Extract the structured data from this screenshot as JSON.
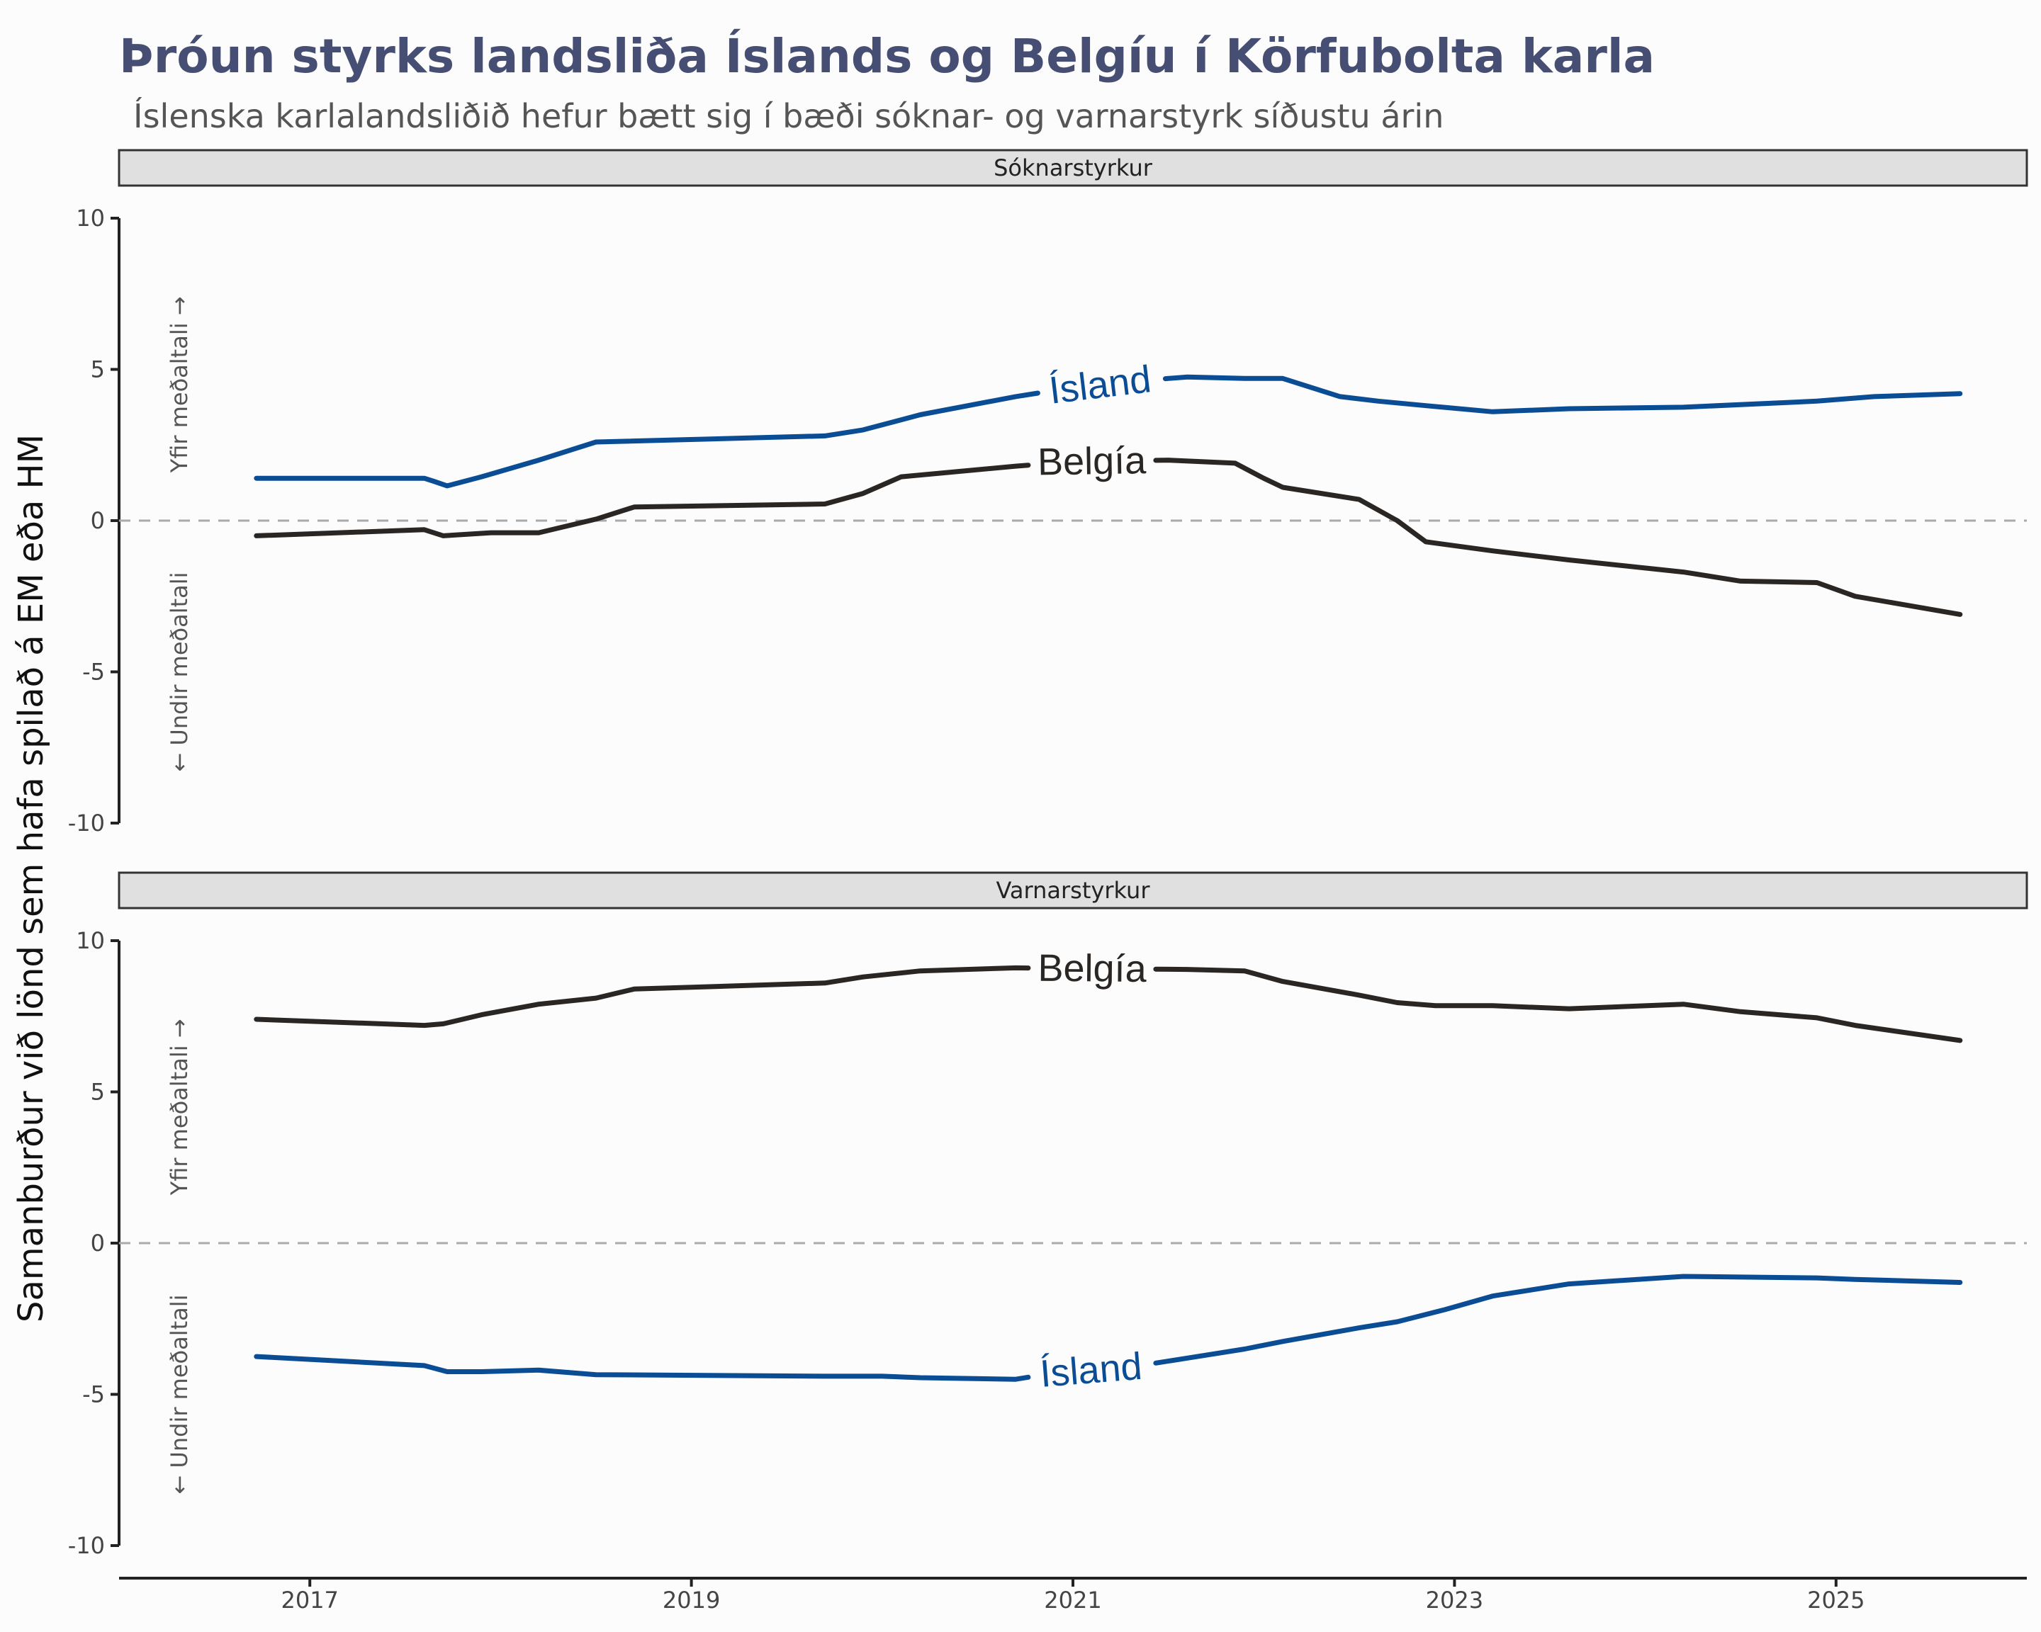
{
  "title": "Þróun styrks landsliða Íslands og Belgíu í Körfubolta karla",
  "subtitle": "Íslenska karlalandsliðið hefur bætt sig í bæði sóknar- og varnarstyrk síðustu árin",
  "ylabel": "Samanburður við lönd sem hafa spilað á EM eða HM",
  "above_note": "Yfir meðaltali →",
  "below_note": "← Undir meðaltali",
  "colors": {
    "island": "#0b4d94",
    "belgia": "#2a2623",
    "title": "#464f73"
  },
  "chart_data": [
    {
      "type": "line",
      "panel": "Sóknarstyrkur",
      "xlim": [
        2016.0,
        2026.0
      ],
      "x_ticks": [
        "2017",
        "2019",
        "2021",
        "2023",
        "2025"
      ],
      "x_tick_values": [
        2017,
        2019,
        2021,
        2023,
        2025
      ],
      "ylim": [
        -10,
        10
      ],
      "y_ticks": [
        "10",
        "5",
        "0",
        "-5",
        "-10"
      ],
      "y_tick_values": [
        10,
        5,
        0,
        -5,
        -10
      ],
      "series": [
        {
          "name": "Ísland",
          "color": "#0b4d94",
          "label_x": 2021.15,
          "x": [
            2016.72,
            2017.6,
            2017.65,
            2017.72,
            2017.9,
            2018.2,
            2018.5,
            2019.7,
            2019.9,
            2020.2,
            2020.7,
            2020.9,
            2021.3,
            2021.6,
            2021.9,
            2022.1,
            2022.4,
            2022.6,
            2022.85,
            2023.2,
            2023.6,
            2024.2,
            2024.9,
            2025.2,
            2025.65
          ],
          "y": [
            1.4,
            1.4,
            1.3,
            1.15,
            1.45,
            2.0,
            2.6,
            2.8,
            3.0,
            3.5,
            4.1,
            4.3,
            4.6,
            4.75,
            4.7,
            4.7,
            4.1,
            3.95,
            3.8,
            3.6,
            3.7,
            3.75,
            3.95,
            4.1,
            4.2
          ]
        },
        {
          "name": "Belgía",
          "color": "#2a2623",
          "label_x": 2021.1,
          "x": [
            2016.72,
            2017.6,
            2017.7,
            2017.95,
            2018.2,
            2018.5,
            2018.7,
            2019.7,
            2019.9,
            2020.1,
            2020.7,
            2021.0,
            2021.5,
            2021.85,
            2022.0,
            2022.1,
            2022.5,
            2022.7,
            2022.85,
            2023.2,
            2023.6,
            2024.2,
            2024.5,
            2024.9,
            2025.1,
            2025.65
          ],
          "y": [
            -0.5,
            -0.3,
            -0.5,
            -0.4,
            -0.4,
            0.05,
            0.45,
            0.55,
            0.9,
            1.45,
            1.8,
            1.95,
            2.0,
            1.9,
            1.4,
            1.1,
            0.7,
            0.0,
            -0.7,
            -1.0,
            -1.3,
            -1.7,
            -2.0,
            -2.05,
            -2.5,
            -3.1
          ]
        }
      ]
    },
    {
      "type": "line",
      "panel": "Varnarstyrkur",
      "xlim": [
        2016.0,
        2026.0
      ],
      "x_ticks": [
        "2017",
        "2019",
        "2021",
        "2023",
        "2025"
      ],
      "x_tick_values": [
        2017,
        2019,
        2021,
        2023,
        2025
      ],
      "ylim": [
        -10,
        10
      ],
      "y_ticks": [
        "10",
        "5",
        "0",
        "-5",
        "-10"
      ],
      "y_tick_values": [
        10,
        5,
        0,
        -5,
        -10
      ],
      "series": [
        {
          "name": "Belgía",
          "color": "#2a2623",
          "label_x": 2021.1,
          "x": [
            2016.72,
            2017.6,
            2017.7,
            2017.9,
            2018.2,
            2018.5,
            2018.7,
            2019.7,
            2019.9,
            2020.2,
            2020.7,
            2021.6,
            2021.9,
            2022.1,
            2022.5,
            2022.7,
            2022.9,
            2023.2,
            2023.6,
            2024.2,
            2024.5,
            2024.9,
            2025.1,
            2025.65
          ],
          "y": [
            7.4,
            7.2,
            7.25,
            7.55,
            7.9,
            8.1,
            8.4,
            8.6,
            8.8,
            9.0,
            9.1,
            9.05,
            9.0,
            8.65,
            8.2,
            7.95,
            7.85,
            7.85,
            7.75,
            7.9,
            7.65,
            7.45,
            7.2,
            6.7
          ]
        },
        {
          "name": "Ísland",
          "color": "#0b4d94",
          "label_x": 2021.1,
          "x": [
            2016.72,
            2017.6,
            2017.72,
            2017.9,
            2018.2,
            2018.5,
            2019.7,
            2019.9,
            2020.0,
            2020.2,
            2020.7,
            2020.9,
            2021.3,
            2021.6,
            2021.9,
            2022.1,
            2022.5,
            2022.7,
            2022.95,
            2023.2,
            2023.6,
            2024.2,
            2024.9,
            2025.1,
            2025.65
          ],
          "y": [
            -3.75,
            -4.05,
            -4.25,
            -4.25,
            -4.2,
            -4.35,
            -4.4,
            -4.4,
            -4.4,
            -4.45,
            -4.5,
            -4.3,
            -4.1,
            -3.8,
            -3.5,
            -3.25,
            -2.8,
            -2.6,
            -2.2,
            -1.75,
            -1.35,
            -1.1,
            -1.15,
            -1.2,
            -1.3
          ]
        }
      ]
    }
  ]
}
